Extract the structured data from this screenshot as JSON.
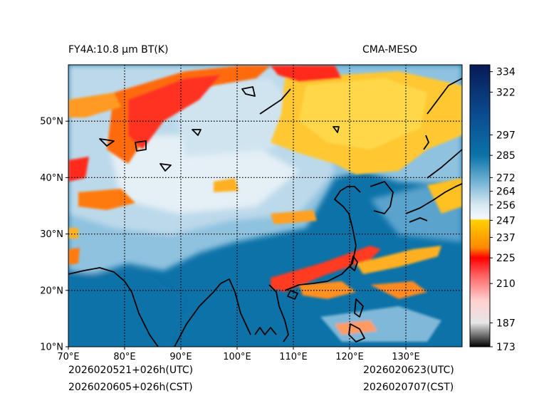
{
  "header": {
    "left_title": "FY4A:10.8 µm BT(K)",
    "right_title": "CMA-MESO"
  },
  "footer": {
    "init_utc": "2026020521+026h(UTC)",
    "init_cst": "2026020605+026h(CST)",
    "valid_utc": "2026020623(UTC)",
    "valid_cst": "2026020707(CST)"
  },
  "map": {
    "lon_range": [
      70,
      140
    ],
    "lat_range": [
      10,
      60
    ],
    "x_ticks": [
      {
        "value": 70,
        "label": "70°E"
      },
      {
        "value": 80,
        "label": "80°E"
      },
      {
        "value": 90,
        "label": "90°E"
      },
      {
        "value": 100,
        "label": "100°E"
      },
      {
        "value": 110,
        "label": "110°E"
      },
      {
        "value": 120,
        "label": "120°E"
      },
      {
        "value": 130,
        "label": "130°E"
      }
    ],
    "y_ticks": [
      {
        "value": 10,
        "label": "10°N"
      },
      {
        "value": 20,
        "label": "20°N"
      },
      {
        "value": 30,
        "label": "30°N"
      },
      {
        "value": 40,
        "label": "40°N"
      },
      {
        "value": 50,
        "label": "50°N"
      }
    ],
    "grid_lons": [
      80,
      90,
      100,
      110,
      120,
      130
    ],
    "grid_lats": [
      20,
      30,
      40,
      50
    ]
  },
  "colorbar": {
    "vmin": 173,
    "vmax": 338,
    "ticks": [
      {
        "value": 334,
        "label": "334"
      },
      {
        "value": 322,
        "label": "322"
      },
      {
        "value": 297,
        "label": "297"
      },
      {
        "value": 285,
        "label": "285"
      },
      {
        "value": 272,
        "label": "272"
      },
      {
        "value": 264,
        "label": "264"
      },
      {
        "value": 256,
        "label": "256"
      },
      {
        "value": 247,
        "label": "247"
      },
      {
        "value": 237,
        "label": "237"
      },
      {
        "value": 225,
        "label": "225"
      },
      {
        "value": 210,
        "label": "210"
      },
      {
        "value": 187,
        "label": "187"
      },
      {
        "value": 173,
        "label": "173"
      }
    ],
    "stops": [
      {
        "value": 173,
        "color": "#000000"
      },
      {
        "value": 187,
        "color": "#e6e6e6"
      },
      {
        "value": 200,
        "color": "#ffd0d0"
      },
      {
        "value": 215,
        "color": "#ff6060"
      },
      {
        "value": 225,
        "color": "#ff0000"
      },
      {
        "value": 231,
        "color": "#ff8800"
      },
      {
        "value": 240,
        "color": "#ffb000"
      },
      {
        "value": 247,
        "color": "#ffd000"
      },
      {
        "value": 248,
        "color": "#f4f8fb"
      },
      {
        "value": 256,
        "color": "#d8e8f2"
      },
      {
        "value": 270,
        "color": "#6fb1d4"
      },
      {
        "value": 285,
        "color": "#0c72a8"
      },
      {
        "value": 310,
        "color": "#0a4a8c"
      },
      {
        "value": 338,
        "color": "#081a55"
      }
    ]
  }
}
